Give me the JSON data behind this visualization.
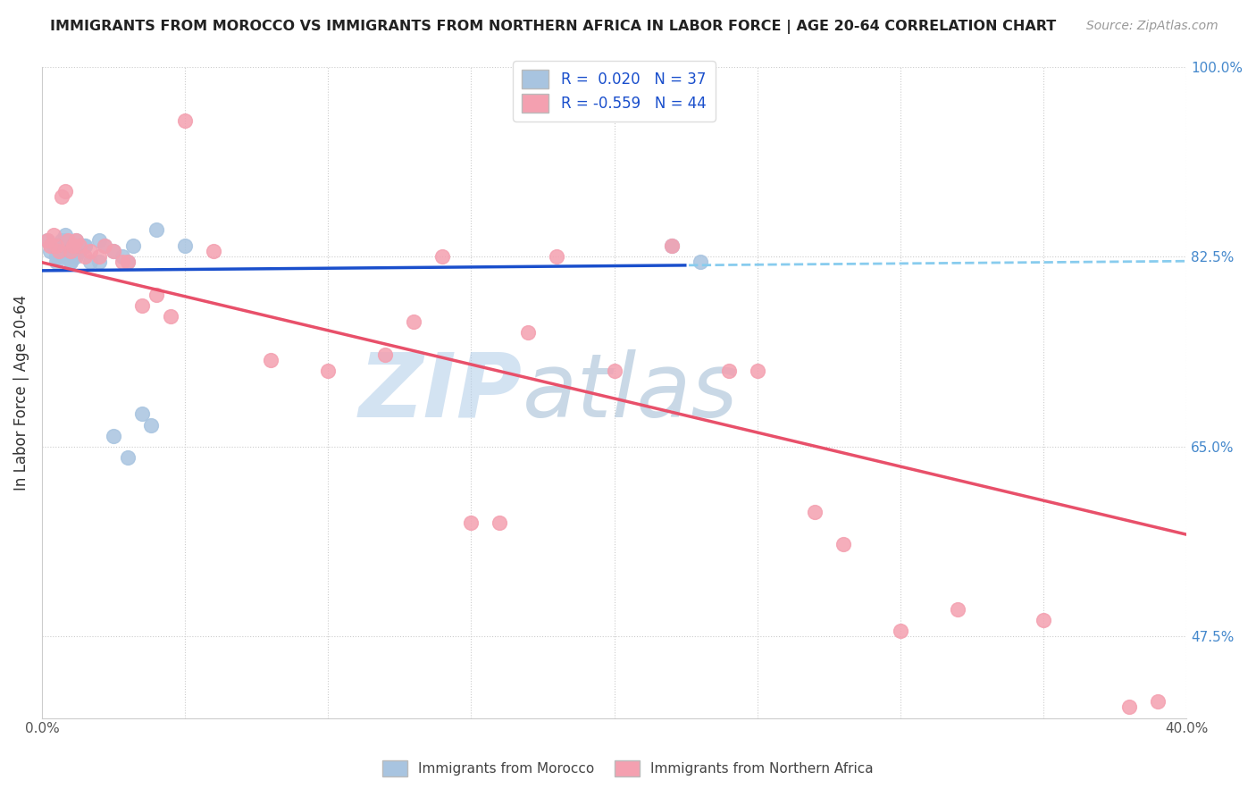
{
  "title": "IMMIGRANTS FROM MOROCCO VS IMMIGRANTS FROM NORTHERN AFRICA IN LABOR FORCE | AGE 20-64 CORRELATION CHART",
  "source": "Source: ZipAtlas.com",
  "ylabel": "In Labor Force | Age 20-64",
  "xlim": [
    0.0,
    0.4
  ],
  "ylim": [
    0.4,
    1.0
  ],
  "legend_r_blue": "0.020",
  "legend_n_blue": "37",
  "legend_r_pink": "-0.559",
  "legend_n_pink": "44",
  "blue_color": "#a8c4e0",
  "pink_color": "#f4a0b0",
  "trend_blue_color": "#1a4fcc",
  "trend_pink_color": "#e8506a",
  "dashed_line_color": "#88ccee",
  "watermark_zip": "ZIP",
  "watermark_atlas": "atlas",
  "blue_x": [
    0.002,
    0.003,
    0.004,
    0.005,
    0.006,
    0.007,
    0.008,
    0.009,
    0.01,
    0.011,
    0.012,
    0.013,
    0.015,
    0.017,
    0.02,
    0.022,
    0.025,
    0.028,
    0.03,
    0.032,
    0.035,
    0.038,
    0.04,
    0.005,
    0.006,
    0.007,
    0.008,
    0.009,
    0.01,
    0.012,
    0.015,
    0.02,
    0.025,
    0.03,
    0.05,
    0.22,
    0.23
  ],
  "blue_y": [
    0.84,
    0.83,
    0.835,
    0.825,
    0.83,
    0.84,
    0.845,
    0.83,
    0.82,
    0.825,
    0.84,
    0.83,
    0.835,
    0.82,
    0.84,
    0.835,
    0.83,
    0.825,
    0.82,
    0.835,
    0.68,
    0.67,
    0.85,
    0.82,
    0.825,
    0.835,
    0.84,
    0.83,
    0.82,
    0.825,
    0.835,
    0.82,
    0.66,
    0.64,
    0.835,
    0.835,
    0.82
  ],
  "pink_x": [
    0.002,
    0.003,
    0.004,
    0.005,
    0.006,
    0.007,
    0.008,
    0.009,
    0.01,
    0.011,
    0.012,
    0.013,
    0.015,
    0.017,
    0.02,
    0.022,
    0.025,
    0.028,
    0.03,
    0.035,
    0.04,
    0.045,
    0.05,
    0.06,
    0.08,
    0.1,
    0.12,
    0.13,
    0.14,
    0.15,
    0.16,
    0.17,
    0.18,
    0.2,
    0.22,
    0.24,
    0.25,
    0.27,
    0.28,
    0.3,
    0.32,
    0.35,
    0.38,
    0.39
  ],
  "pink_y": [
    0.84,
    0.835,
    0.845,
    0.835,
    0.83,
    0.88,
    0.885,
    0.84,
    0.83,
    0.835,
    0.84,
    0.835,
    0.825,
    0.83,
    0.825,
    0.835,
    0.83,
    0.82,
    0.82,
    0.78,
    0.79,
    0.77,
    0.95,
    0.83,
    0.73,
    0.72,
    0.735,
    0.765,
    0.825,
    0.58,
    0.58,
    0.755,
    0.825,
    0.72,
    0.835,
    0.72,
    0.72,
    0.59,
    0.56,
    0.48,
    0.5,
    0.49,
    0.41,
    0.415
  ]
}
